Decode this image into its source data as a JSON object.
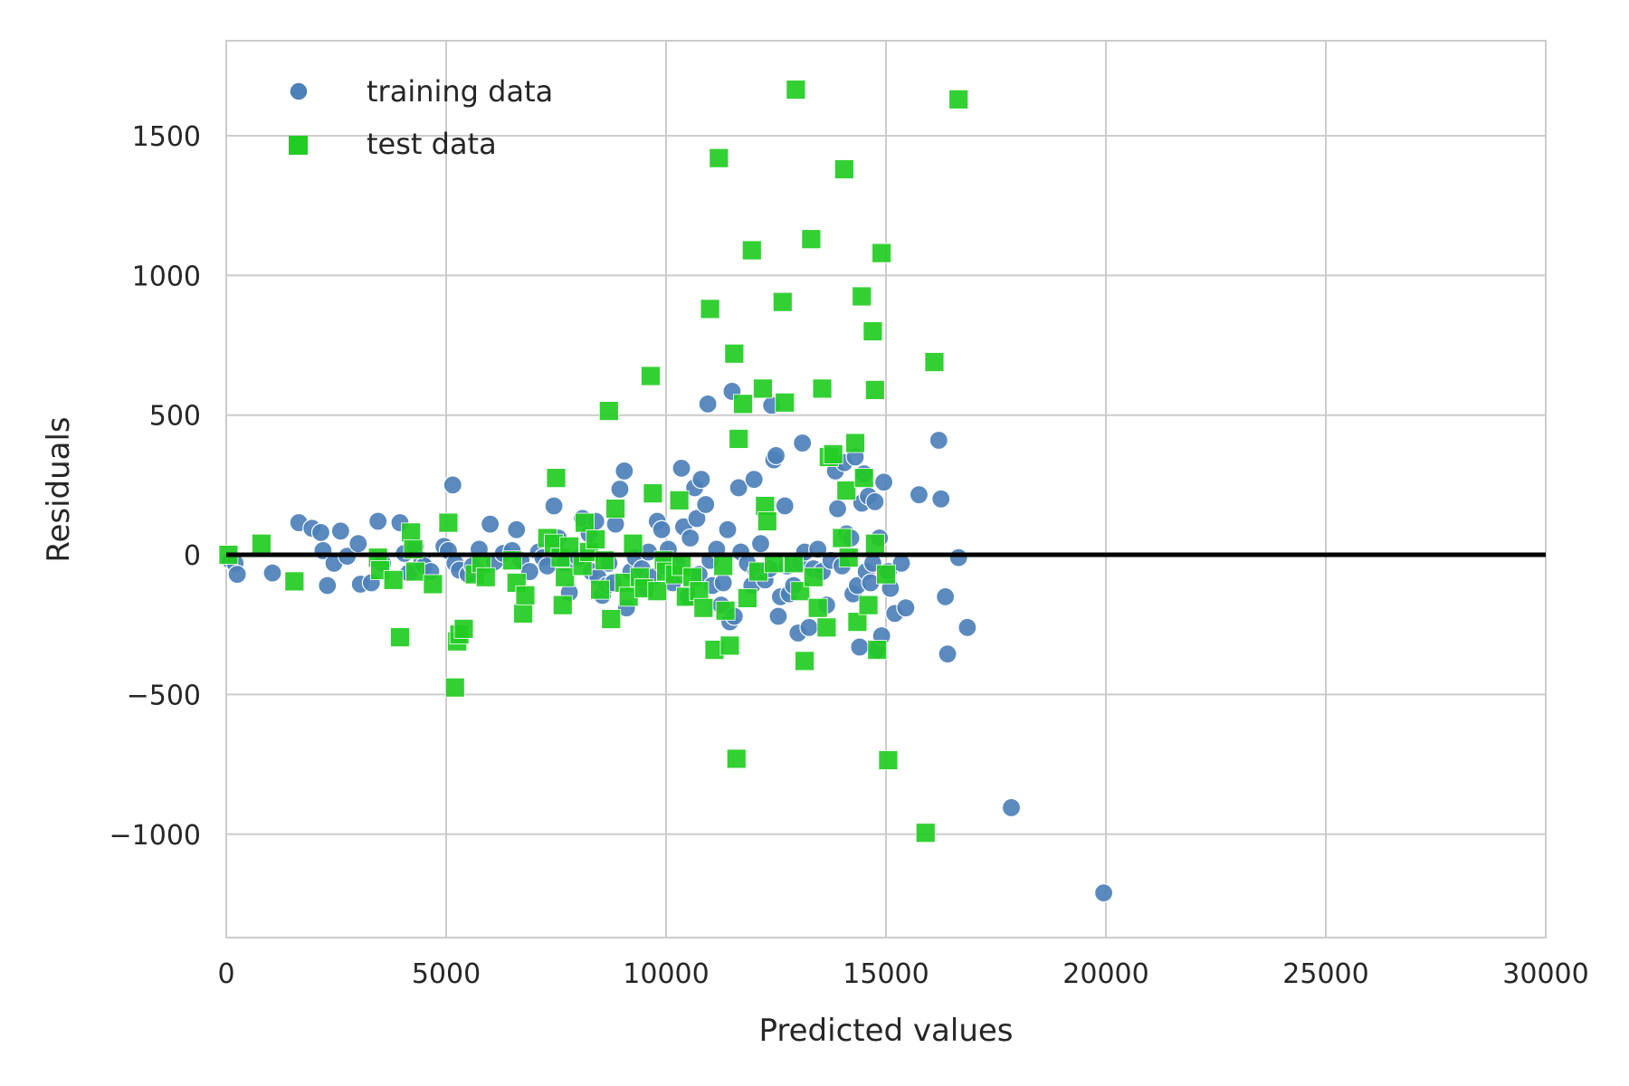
{
  "chart_data": {
    "type": "scatter",
    "title": "",
    "xlabel": "Predicted values",
    "ylabel": "Residuals",
    "xlim": [
      0,
      30000
    ],
    "ylim": [
      -1370,
      1840
    ],
    "xticks": [
      0,
      5000,
      10000,
      15000,
      20000,
      25000,
      30000
    ],
    "yticks": [
      -1000,
      -500,
      0,
      500,
      1000,
      1500
    ],
    "xtick_labels": [
      "0",
      "5000",
      "10000",
      "15000",
      "20000",
      "25000",
      "30000"
    ],
    "ytick_labels": [
      "−1000",
      "−500",
      "0",
      "500",
      "1000",
      "1500"
    ],
    "grid": true,
    "legend_position": "top-left",
    "hline": {
      "y": 0,
      "x_range": [
        0,
        30000
      ],
      "color": "#000000"
    },
    "series": [
      {
        "name": "training data",
        "marker": "circle",
        "color": "#4C80B8",
        "points": [
          [
            100,
            -20
          ],
          [
            200,
            -30
          ],
          [
            250,
            -70
          ],
          [
            1050,
            -65
          ],
          [
            1650,
            115
          ],
          [
            1950,
            95
          ],
          [
            2150,
            80
          ],
          [
            2200,
            15
          ],
          [
            2300,
            -110
          ],
          [
            2450,
            -30
          ],
          [
            2600,
            85
          ],
          [
            2750,
            -5
          ],
          [
            3000,
            40
          ],
          [
            3050,
            -105
          ],
          [
            3300,
            -100
          ],
          [
            3450,
            120
          ],
          [
            3550,
            -30
          ],
          [
            3950,
            115
          ],
          [
            4050,
            5
          ],
          [
            4150,
            -65
          ],
          [
            4300,
            30
          ],
          [
            4450,
            -20
          ],
          [
            4500,
            -40
          ],
          [
            4650,
            -60
          ],
          [
            4950,
            30
          ],
          [
            5050,
            15
          ],
          [
            5150,
            250
          ],
          [
            5200,
            -30
          ],
          [
            5300,
            -55
          ],
          [
            5500,
            -70
          ],
          [
            5600,
            -40
          ],
          [
            5750,
            20
          ],
          [
            6000,
            110
          ],
          [
            6100,
            -25
          ],
          [
            6300,
            5
          ],
          [
            6500,
            15
          ],
          [
            6600,
            90
          ],
          [
            6700,
            -20
          ],
          [
            6900,
            -60
          ],
          [
            7100,
            10
          ],
          [
            7200,
            -10
          ],
          [
            7300,
            -40
          ],
          [
            7450,
            175
          ],
          [
            7550,
            60
          ],
          [
            7700,
            -30
          ],
          [
            7800,
            -135
          ],
          [
            8000,
            -10
          ],
          [
            8100,
            130
          ],
          [
            8250,
            75
          ],
          [
            8300,
            -60
          ],
          [
            8400,
            120
          ],
          [
            8450,
            -80
          ],
          [
            8550,
            -145
          ],
          [
            8650,
            -110
          ],
          [
            8700,
            -30
          ],
          [
            8800,
            -100
          ],
          [
            8850,
            110
          ],
          [
            8950,
            235
          ],
          [
            9050,
            300
          ],
          [
            9100,
            -190
          ],
          [
            9200,
            -60
          ],
          [
            9300,
            -10
          ],
          [
            9450,
            -50
          ],
          [
            9550,
            -120
          ],
          [
            9600,
            10
          ],
          [
            9700,
            -80
          ],
          [
            9800,
            120
          ],
          [
            9900,
            90
          ],
          [
            9950,
            -40
          ],
          [
            10050,
            20
          ],
          [
            10150,
            -100
          ],
          [
            10250,
            -30
          ],
          [
            10350,
            310
          ],
          [
            10400,
            100
          ],
          [
            10500,
            -150
          ],
          [
            10550,
            60
          ],
          [
            10650,
            240
          ],
          [
            10700,
            130
          ],
          [
            10750,
            -70
          ],
          [
            10800,
            270
          ],
          [
            10900,
            180
          ],
          [
            10950,
            540
          ],
          [
            11000,
            -20
          ],
          [
            11050,
            -110
          ],
          [
            11150,
            20
          ],
          [
            11250,
            -180
          ],
          [
            11300,
            -100
          ],
          [
            11400,
            90
          ],
          [
            11450,
            -240
          ],
          [
            11500,
            585
          ],
          [
            11550,
            -220
          ],
          [
            11650,
            240
          ],
          [
            11700,
            10
          ],
          [
            11850,
            -30
          ],
          [
            11950,
            -110
          ],
          [
            12000,
            270
          ],
          [
            12050,
            -60
          ],
          [
            12150,
            40
          ],
          [
            12250,
            -90
          ],
          [
            12350,
            -50
          ],
          [
            12400,
            535
          ],
          [
            12450,
            340
          ],
          [
            12500,
            355
          ],
          [
            12550,
            -220
          ],
          [
            12600,
            -150
          ],
          [
            12700,
            175
          ],
          [
            12750,
            -40
          ],
          [
            12800,
            -140
          ],
          [
            12900,
            -110
          ],
          [
            13000,
            -280
          ],
          [
            13050,
            -30
          ],
          [
            13100,
            400
          ],
          [
            13150,
            10
          ],
          [
            13250,
            -260
          ],
          [
            13350,
            -50
          ],
          [
            13450,
            20
          ],
          [
            13550,
            -60
          ],
          [
            13650,
            -180
          ],
          [
            13750,
            -20
          ],
          [
            13850,
            300
          ],
          [
            13900,
            165
          ],
          [
            14000,
            -40
          ],
          [
            14050,
            330
          ],
          [
            14100,
            75
          ],
          [
            14200,
            60
          ],
          [
            14250,
            -140
          ],
          [
            14300,
            350
          ],
          [
            14350,
            -110
          ],
          [
            14400,
            -330
          ],
          [
            14450,
            185
          ],
          [
            14500,
            290
          ],
          [
            14550,
            -60
          ],
          [
            14600,
            210
          ],
          [
            14650,
            -100
          ],
          [
            14700,
            -30
          ],
          [
            14750,
            190
          ],
          [
            14800,
            -340
          ],
          [
            14850,
            60
          ],
          [
            14900,
            -290
          ],
          [
            14950,
            260
          ],
          [
            15050,
            -60
          ],
          [
            15100,
            -120
          ],
          [
            15200,
            -210
          ],
          [
            15350,
            -30
          ],
          [
            15450,
            -190
          ],
          [
            15750,
            215
          ],
          [
            16200,
            410
          ],
          [
            16250,
            200
          ],
          [
            16350,
            -150
          ],
          [
            16400,
            -355
          ],
          [
            16650,
            -10
          ],
          [
            16850,
            -260
          ],
          [
            17850,
            -905
          ],
          [
            19950,
            -1210
          ]
        ]
      },
      {
        "name": "test data",
        "marker": "square",
        "color": "#22CC22",
        "points": [
          [
            50,
            0
          ],
          [
            800,
            40
          ],
          [
            1550,
            -95
          ],
          [
            3450,
            -10
          ],
          [
            3500,
            -55
          ],
          [
            3800,
            -90
          ],
          [
            3950,
            -295
          ],
          [
            4200,
            80
          ],
          [
            4250,
            20
          ],
          [
            4300,
            -60
          ],
          [
            4700,
            -105
          ],
          [
            5050,
            115
          ],
          [
            5200,
            -475
          ],
          [
            5250,
            -310
          ],
          [
            5300,
            -285
          ],
          [
            5400,
            -265
          ],
          [
            5650,
            -70
          ],
          [
            5800,
            -30
          ],
          [
            5900,
            -80
          ],
          [
            6500,
            -20
          ],
          [
            6600,
            -100
          ],
          [
            6750,
            -210
          ],
          [
            6800,
            -145
          ],
          [
            7300,
            60
          ],
          [
            7450,
            40
          ],
          [
            7500,
            275
          ],
          [
            7600,
            -10
          ],
          [
            7650,
            -180
          ],
          [
            7700,
            -80
          ],
          [
            7800,
            30
          ],
          [
            8100,
            -40
          ],
          [
            8150,
            115
          ],
          [
            8250,
            10
          ],
          [
            8400,
            55
          ],
          [
            8500,
            -125
          ],
          [
            8600,
            -20
          ],
          [
            8700,
            515
          ],
          [
            8750,
            -230
          ],
          [
            8850,
            165
          ],
          [
            9050,
            -100
          ],
          [
            9150,
            -150
          ],
          [
            9250,
            40
          ],
          [
            9400,
            -80
          ],
          [
            9500,
            -120
          ],
          [
            9650,
            640
          ],
          [
            9700,
            220
          ],
          [
            9800,
            -130
          ],
          [
            9950,
            -20
          ],
          [
            10000,
            -60
          ],
          [
            10200,
            -70
          ],
          [
            10300,
            195
          ],
          [
            10350,
            -40
          ],
          [
            10450,
            -150
          ],
          [
            10600,
            -80
          ],
          [
            10750,
            -130
          ],
          [
            10850,
            -190
          ],
          [
            11000,
            880
          ],
          [
            11100,
            -340
          ],
          [
            11200,
            1420
          ],
          [
            11300,
            -40
          ],
          [
            11350,
            -200
          ],
          [
            11450,
            -325
          ],
          [
            11550,
            720
          ],
          [
            11600,
            -730
          ],
          [
            11650,
            415
          ],
          [
            11750,
            540
          ],
          [
            11850,
            -155
          ],
          [
            11950,
            1090
          ],
          [
            12100,
            -60
          ],
          [
            12200,
            595
          ],
          [
            12250,
            175
          ],
          [
            12300,
            120
          ],
          [
            12450,
            -30
          ],
          [
            12650,
            905
          ],
          [
            12700,
            545
          ],
          [
            12900,
            -30
          ],
          [
            12950,
            1665
          ],
          [
            13050,
            -130
          ],
          [
            13150,
            -380
          ],
          [
            13300,
            1130
          ],
          [
            13350,
            -80
          ],
          [
            13450,
            -190
          ],
          [
            13550,
            595
          ],
          [
            13650,
            -260
          ],
          [
            13700,
            350
          ],
          [
            13800,
            360
          ],
          [
            14000,
            60
          ],
          [
            14050,
            1380
          ],
          [
            14100,
            230
          ],
          [
            14150,
            -10
          ],
          [
            14300,
            400
          ],
          [
            14350,
            -240
          ],
          [
            14450,
            925
          ],
          [
            14500,
            275
          ],
          [
            14600,
            -180
          ],
          [
            14700,
            800
          ],
          [
            14750,
            590
          ],
          [
            14750,
            40
          ],
          [
            14800,
            -340
          ],
          [
            14900,
            1080
          ],
          [
            15000,
            -70
          ],
          [
            15050,
            -735
          ],
          [
            15900,
            -995
          ],
          [
            16100,
            690
          ],
          [
            16650,
            1630
          ]
        ]
      }
    ]
  },
  "legend": {
    "items": [
      {
        "label": "training data"
      },
      {
        "label": "test data"
      }
    ]
  },
  "colors": {
    "training": "#4C80B8",
    "test": "#22CC22",
    "grid": "#CCCCCC",
    "zero_line": "#000000"
  }
}
